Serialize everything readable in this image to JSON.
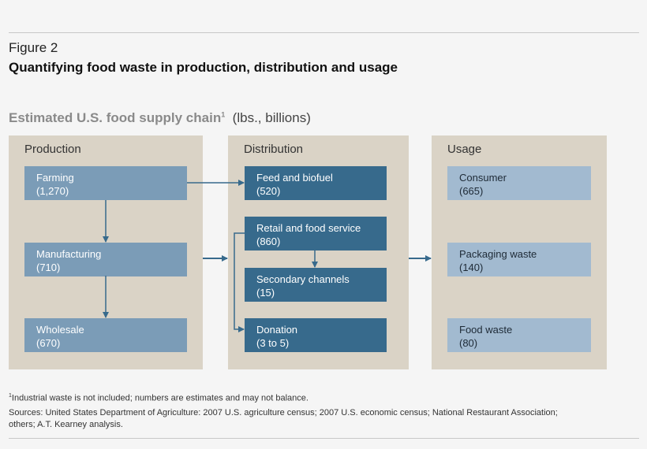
{
  "figure_label": "Figure 2",
  "title": "Quantifying food waste in production, distribution and usage",
  "subtitle": {
    "main": "Estimated U.S. food supply chain",
    "sup": "1",
    "units": "(lbs., billions)"
  },
  "columns": [
    {
      "header": "Production",
      "boxes": [
        {
          "label": "Farming",
          "value": "(1,270)"
        },
        {
          "label": "Manufacturing",
          "value": "(710)"
        },
        {
          "label": "Wholesale",
          "value": "(670)"
        }
      ]
    },
    {
      "header": "Distribution",
      "boxes": [
        {
          "label": "Feed and biofuel",
          "value": "(520)"
        },
        {
          "label": "Retail and food service",
          "value": "(860)"
        },
        {
          "label": "Secondary channels",
          "value": "(15)"
        },
        {
          "label": "Donation",
          "value": "(3 to 5)"
        }
      ]
    },
    {
      "header": "Usage",
      "boxes": [
        {
          "label": "Consumer",
          "value": "(665)"
        },
        {
          "label": "Packaging waste",
          "value": "(140)"
        },
        {
          "label": "Food waste",
          "value": "(80)"
        }
      ]
    }
  ],
  "footnote": {
    "sup": "1",
    "text": "Industrial waste is not included; numbers are estimates and may not balance."
  },
  "sources": "Sources: United States Department of Agriculture: 2007 U.S. agriculture census; 2007 U.S. economic census; National Restaurant Association; others; A.T. Kearney analysis.",
  "colors": {
    "panel": "#dad3c6",
    "production_box": "#7b9cb7",
    "distribution_box": "#376a8c",
    "usage_box": "#a2bad0",
    "arrow": "#376a8c"
  }
}
